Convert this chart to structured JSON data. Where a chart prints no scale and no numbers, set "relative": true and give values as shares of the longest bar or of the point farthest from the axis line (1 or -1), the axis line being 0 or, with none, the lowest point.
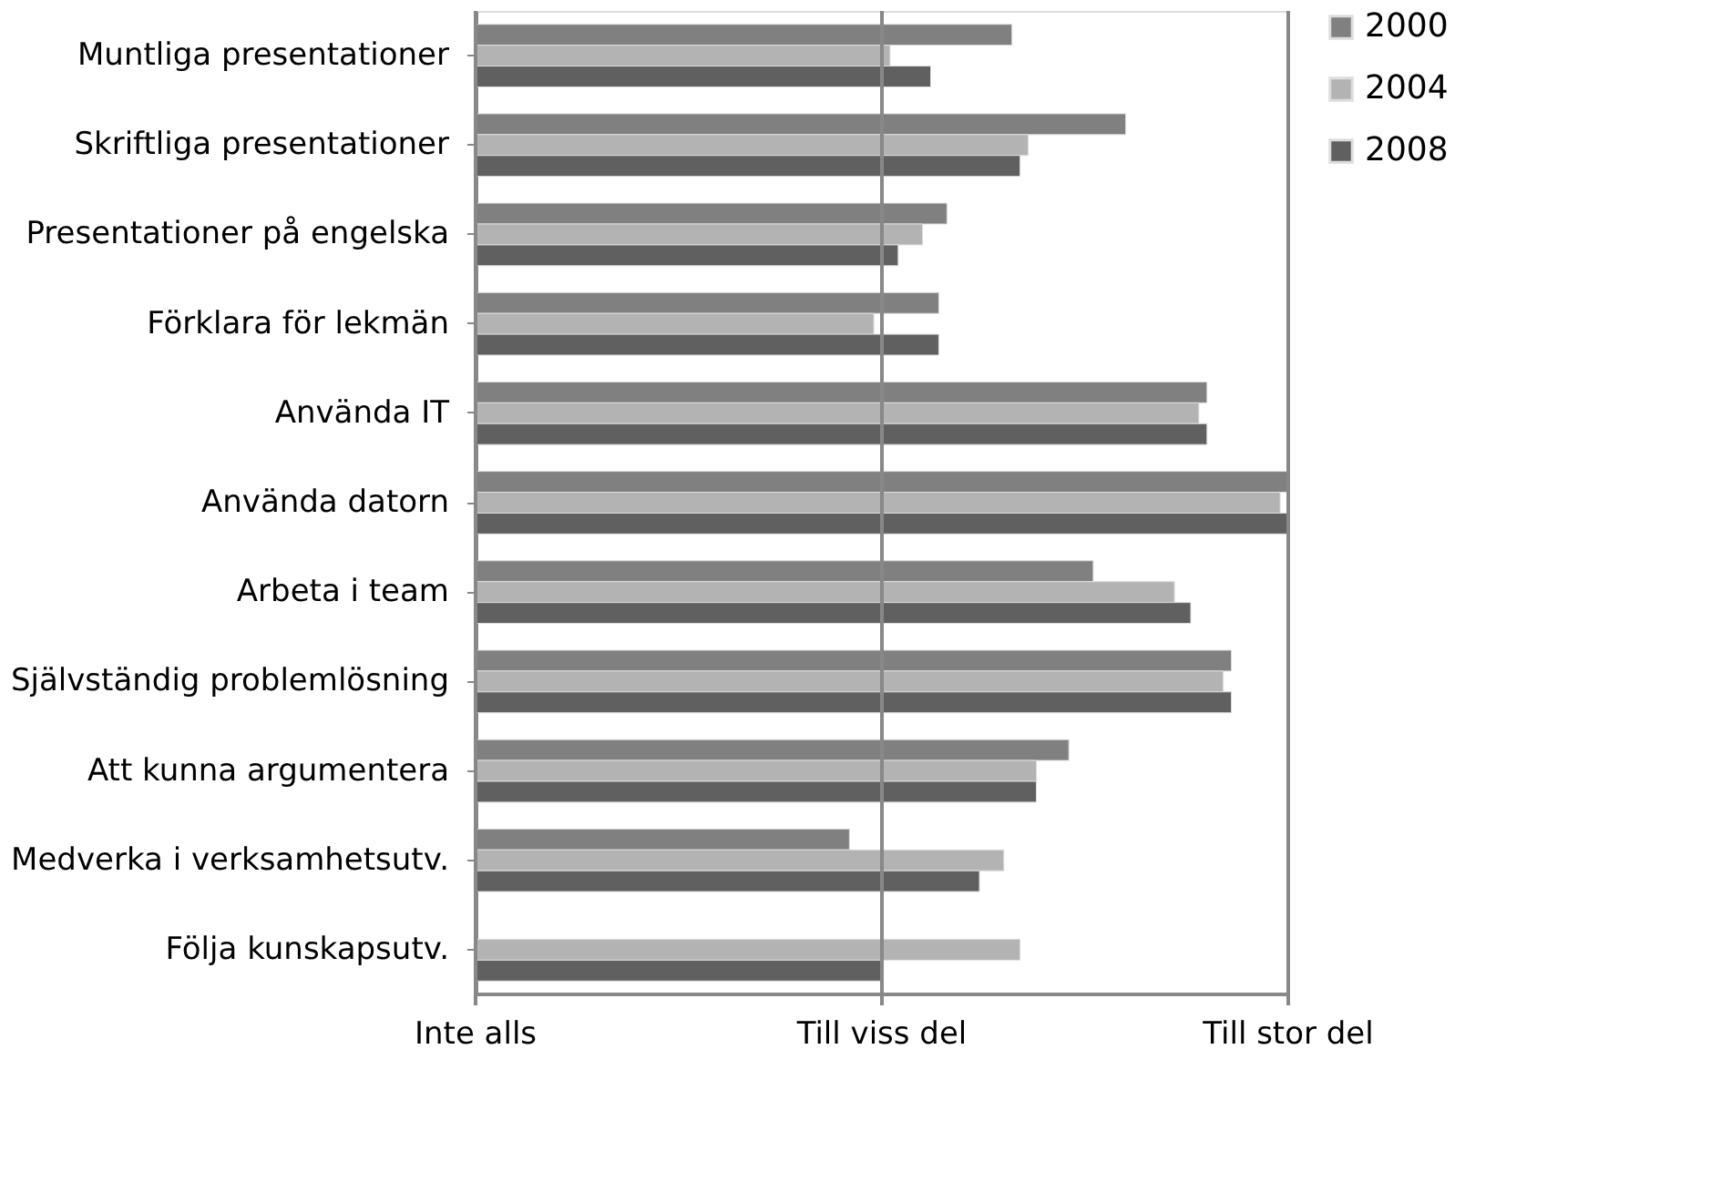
{
  "chart_data": {
    "type": "bar",
    "orientation": "horizontal",
    "relative": true,
    "categories": [
      "Muntliga presentationer",
      "Skriftliga presentationer",
      "Presentationer på engelska",
      "Förklara för lekmän",
      "Använda IT",
      "Använda datorn",
      "Arbeta i team",
      "Självständig problemlösning",
      "Att kunna argumentera",
      "Medverka i verksamhetsutv.",
      "Följa kunskapsutv."
    ],
    "series": [
      {
        "name": "2000",
        "color": "#808080",
        "values": [
          0.66,
          0.8,
          0.58,
          0.57,
          0.9,
          1.0,
          0.76,
          0.93,
          0.73,
          0.46,
          null
        ]
      },
      {
        "name": "2004",
        "color": "#b3b3b3",
        "values": [
          0.51,
          0.68,
          0.55,
          0.49,
          0.89,
          0.99,
          0.86,
          0.92,
          0.69,
          0.65,
          0.67
        ]
      },
      {
        "name": "2008",
        "color": "#606060",
        "values": [
          0.56,
          0.67,
          0.52,
          0.57,
          0.9,
          1.0,
          0.88,
          0.93,
          0.69,
          0.62,
          0.5
        ]
      }
    ],
    "annotations": [
      "Inte alls",
      "Till viss del",
      "Till stor del"
    ],
    "legend": "right"
  }
}
